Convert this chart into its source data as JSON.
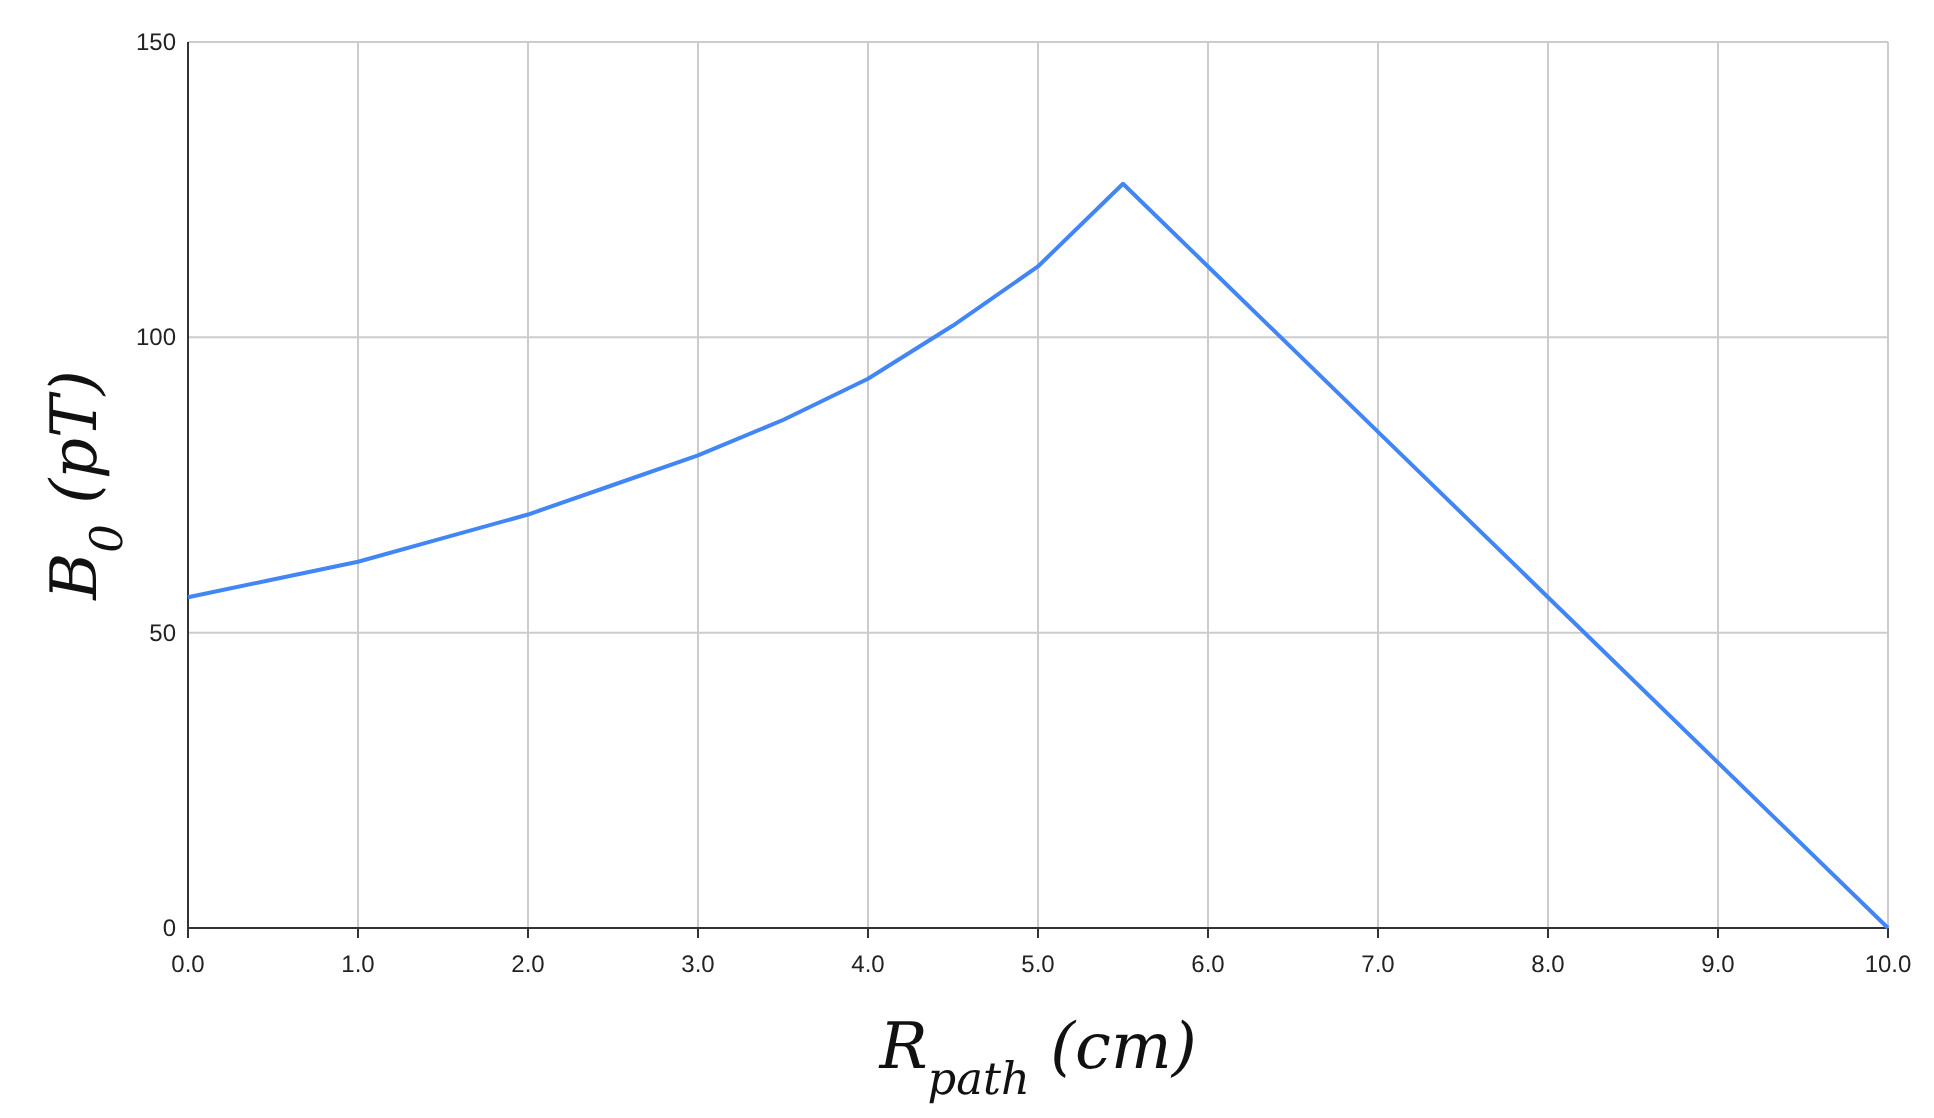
{
  "chart_data": {
    "type": "line",
    "xlabel": "R$_{path}$ (cm)",
    "ylabel": "B$_{0}$ (pT)",
    "x": [
      0,
      0.5,
      1,
      1.5,
      2,
      2.5,
      3,
      3.5,
      4,
      4.5,
      5,
      5.5,
      6,
      7,
      8,
      9,
      10
    ],
    "series": [
      {
        "color": "#4285f4",
        "values": [
          56,
          59,
          62,
          66,
          70,
          75,
          80,
          86,
          93,
          102,
          112,
          126,
          112,
          84,
          56,
          28,
          0
        ]
      }
    ],
    "xlim": [
      0,
      10
    ],
    "xticks": [
      {
        "value": 0,
        "label": "0.0"
      },
      {
        "value": 1,
        "label": "1.0"
      },
      {
        "value": 2,
        "label": "2.0"
      },
      {
        "value": 3,
        "label": "3.0"
      },
      {
        "value": 4,
        "label": "4.0"
      },
      {
        "value": 5,
        "label": "5.0"
      },
      {
        "value": 6,
        "label": "6.0"
      },
      {
        "value": 7,
        "label": "7.0"
      },
      {
        "value": 8,
        "label": "8.0"
      },
      {
        "value": 9,
        "label": "9.0"
      },
      {
        "value": 10,
        "label": "10.0"
      }
    ],
    "ylim": [
      0,
      150
    ],
    "yticks": [
      0,
      50,
      100,
      150
    ],
    "grid": true,
    "marker": "none",
    "line_style": "solid"
  }
}
